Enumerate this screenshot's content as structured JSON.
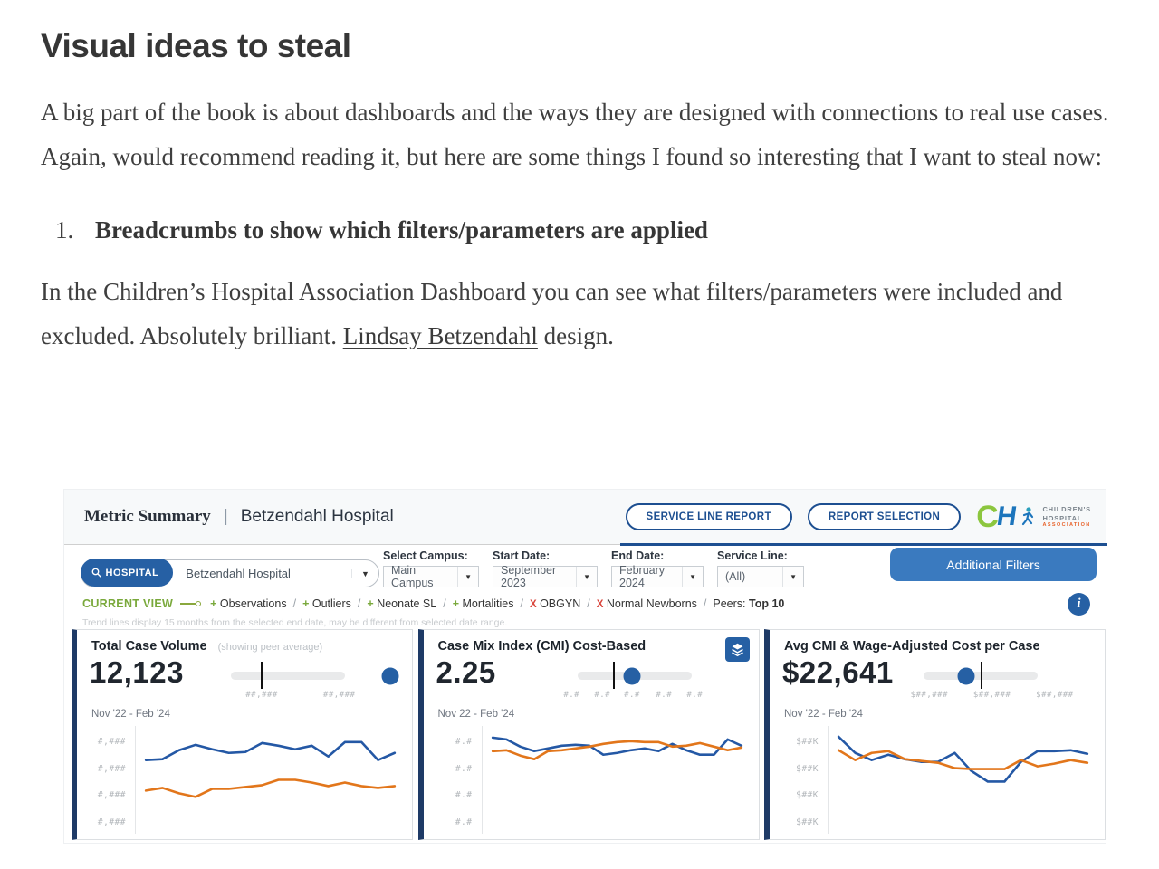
{
  "article": {
    "heading": "Visual ideas to steal",
    "para1": "A big part of the book is about dashboards and the ways they are designed with connections to real use cases. Again, would recommend reading it, but here are some things I found so interesting that I want to steal now:",
    "list_item_number": "1.",
    "list_item": "Breadcrumbs to show which filters/parameters are applied",
    "para2_before": "In the Children’s Hospital Association Dashboard you can see what filters/parameters were included and excluded. Absolutely brilliant. ",
    "para2_link": "Lindsay Betzendahl",
    "para2_after": " design."
  },
  "colors": {
    "accent_blue": "#2660a4",
    "navy": "#1d4f91",
    "card_border_navy": "#1e3a66",
    "green": "#7aa93c",
    "red": "#d9453c",
    "line_blue": "#2458a5",
    "line_orange": "#e2761b",
    "button_blue": "#3a7abf"
  },
  "dashboard": {
    "header": {
      "title": "Metric Summary",
      "separator": "|",
      "subtitle": "Betzendahl Hospital",
      "buttons": [
        {
          "label": "SERVICE LINE REPORT"
        },
        {
          "label": "REPORT SELECTION"
        }
      ],
      "logo": {
        "c": "C",
        "h": "H",
        "line1": "CHILDREN'S",
        "line2": "HOSPITAL",
        "line3": "ASSOCIATION"
      }
    },
    "filters": {
      "hospital_pill": "HOSPITAL",
      "hospital_value": "Betzendahl Hospital",
      "caret": "▼",
      "selects": [
        {
          "label": "Select Campus:",
          "value": "Main Campus"
        },
        {
          "label": "Start Date:",
          "value": "September 2023"
        },
        {
          "label": "End Date:",
          "value": "February 2024"
        },
        {
          "label": "Service Line:",
          "value": "(All)"
        }
      ],
      "additional_filters_label": "Additional Filters"
    },
    "current_view": {
      "label": "CURRENT VIEW",
      "included": [
        "Observations",
        "Outliers",
        "Neonate SL",
        "Mortalities"
      ],
      "excluded": [
        "OBGYN",
        "Normal Newborns"
      ],
      "separator": "/",
      "peers_label": "Peers:",
      "peers_value": "Top 10",
      "note": "Trend lines display 15 months from the selected end date, may be different from selected date range.",
      "info_glyph": "i"
    },
    "cards": [
      {
        "title": "Total Case Volume",
        "subtitle": "(showing peer average)",
        "value": "12,123",
        "date_range": "Nov '22 - Feb '24",
        "y_labels": [
          "#,###",
          "#,###",
          "#,###",
          "#,###"
        ],
        "slider": {
          "tick_pct": 27,
          "dot_pct": 140,
          "labels": [
            {
              "text": "##,###",
              "pct": 27
            },
            {
              "text": "##,###",
              "pct": 95
            }
          ]
        }
      },
      {
        "title": "Case Mix Index (CMI) Cost-Based",
        "value": "2.25",
        "date_range": "Nov 22 - Feb '24",
        "y_labels": [
          "#.#",
          "#.#",
          "#.#",
          "#.#"
        ],
        "slider": {
          "tick_pct": 32,
          "dot_pct": 48,
          "labels": [
            {
              "text": "#.#",
              "pct": -5
            },
            {
              "text": "#.#",
              "pct": 22
            },
            {
              "text": "#.#",
              "pct": 48
            },
            {
              "text": "#.#",
              "pct": 76
            },
            {
              "text": "#.#",
              "pct": 103
            }
          ]
        }
      },
      {
        "title": "Avg CMI & Wage-Adjusted Cost per Case",
        "value": "$22,641",
        "date_range": "Nov '22 - Feb '24",
        "y_labels": [
          "$##K",
          "$##K",
          "$##K",
          "$##K"
        ],
        "slider": {
          "tick_pct": 51,
          "dot_pct": 37,
          "labels": [
            {
              "text": "$##,###",
              "pct": 5
            },
            {
              "text": "$##,###",
              "pct": 60
            },
            {
              "text": "$##,###",
              "pct": 115
            }
          ]
        }
      }
    ]
  },
  "chart_data": [
    {
      "type": "line",
      "title": "Total Case Volume",
      "kpi": "12,123",
      "x_range_label": "Nov '22 - Feb '24",
      "x_tick_labels": [],
      "y_tick_labels": [
        "#,###",
        "#,###",
        "#,###",
        "#,###"
      ],
      "note": "Axis values are masked placeholders in the source; series values are relative plot positions (0=top, 120=bottom of plot).",
      "legend": "none",
      "grid": false,
      "series": [
        {
          "name": "blue",
          "values": [
            38,
            37,
            27,
            21,
            26,
            30,
            29,
            19,
            22,
            26,
            22,
            34,
            18,
            18,
            38,
            30
          ]
        },
        {
          "name": "orange",
          "values": [
            72,
            69,
            75,
            79,
            70,
            70,
            68,
            66,
            60,
            60,
            63,
            67,
            63,
            67,
            69,
            67
          ]
        }
      ]
    },
    {
      "type": "line",
      "title": "Case Mix Index (CMI) Cost-Based",
      "kpi": "2.25",
      "x_range_label": "Nov 22 - Feb '24",
      "x_tick_labels": [],
      "y_tick_labels": [
        "#.#",
        "#.#",
        "#.#",
        "#.#"
      ],
      "note": "Axis values are masked placeholders in the source; series values are relative plot positions (0=top, 120=bottom of plot).",
      "legend": "none",
      "grid": false,
      "series": [
        {
          "name": "blue",
          "values": [
            13,
            15,
            23,
            28,
            25,
            22,
            21,
            22,
            32,
            30,
            27,
            25,
            28,
            20,
            27,
            32,
            32,
            15,
            22
          ]
        },
        {
          "name": "orange",
          "values": [
            28,
            27,
            33,
            37,
            28,
            27,
            25,
            23,
            20,
            18,
            17,
            18,
            18,
            23,
            22,
            19,
            23,
            27,
            24
          ]
        }
      ]
    },
    {
      "type": "line",
      "title": "Avg CMI & Wage-Adjusted Cost per Case",
      "kpi": "$22,641",
      "x_range_label": "Nov '22 - Feb '24",
      "x_tick_labels": [],
      "y_tick_labels": [
        "$##K",
        "$##K",
        "$##K",
        "$##K"
      ],
      "note": "Axis values are masked placeholders in the source; series values are relative plot positions (0=top, 120=bottom of plot).",
      "legend": "none",
      "grid": false,
      "series": [
        {
          "name": "blue",
          "values": [
            12,
            30,
            38,
            32,
            37,
            40,
            40,
            30,
            50,
            62,
            62,
            40,
            28,
            28,
            27,
            31
          ]
        },
        {
          "name": "orange",
          "values": [
            27,
            38,
            30,
            28,
            37,
            39,
            41,
            47,
            48,
            48,
            48,
            38,
            45,
            42,
            38,
            41
          ]
        }
      ]
    }
  ]
}
